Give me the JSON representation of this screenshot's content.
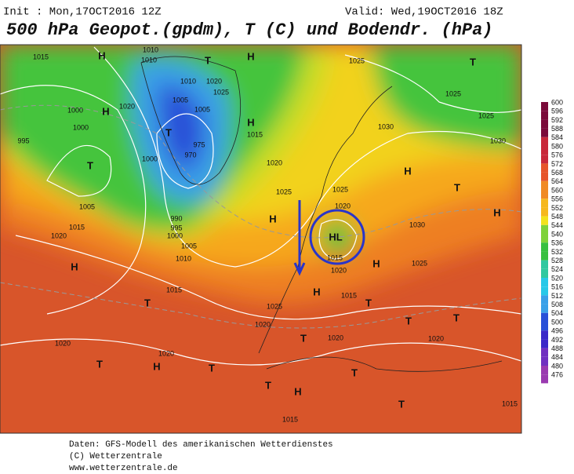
{
  "header": {
    "init": "Init : Mon,17OCT2016 12Z",
    "valid": "Valid: Wed,19OCT2016 18Z",
    "title": "500 hPa Geopot.(gpdm), T (C) und Bodendr. (hPa)"
  },
  "colorbar": {
    "levels": [
      600,
      596,
      592,
      588,
      584,
      580,
      576,
      572,
      568,
      564,
      560,
      556,
      552,
      548,
      544,
      540,
      536,
      532,
      528,
      524,
      520,
      516,
      512,
      508,
      504,
      500,
      496,
      492,
      488,
      484,
      480,
      476
    ]
  },
  "map": {
    "labels": [
      "H",
      "1015",
      "T",
      "H",
      "1010",
      "1010",
      "1010",
      "1020",
      "1025",
      "1020",
      "1005",
      "1005",
      "1000",
      "H",
      "995",
      "1000",
      "T",
      "T",
      "1000",
      "975",
      "970",
      "H",
      "1015",
      "1020",
      "1025",
      "1025",
      "T",
      "1025",
      "1025",
      "1030",
      "1030",
      "1025",
      "1020",
      "H",
      "1030",
      "1025",
      "T",
      "H",
      "H",
      "1015",
      "1020",
      "H",
      "H",
      "1015",
      "T",
      "T",
      "T",
      "1020",
      "T",
      "1020",
      "990",
      "995",
      "1000",
      "1005",
      "1010",
      "1005",
      "1015",
      "1020",
      "H",
      "1015",
      "T",
      "1025",
      "1020",
      "1020",
      "T",
      "H",
      "1020",
      "T",
      "T",
      "T",
      "H",
      "T",
      "1015",
      "1015",
      "HL"
    ]
  },
  "footer": {
    "lines": [
      "Daten: GFS-Modell des amerikanischen Wetterdienstes",
      "(C) Wetterzentrale",
      "www.wetterzentrale.de"
    ]
  }
}
